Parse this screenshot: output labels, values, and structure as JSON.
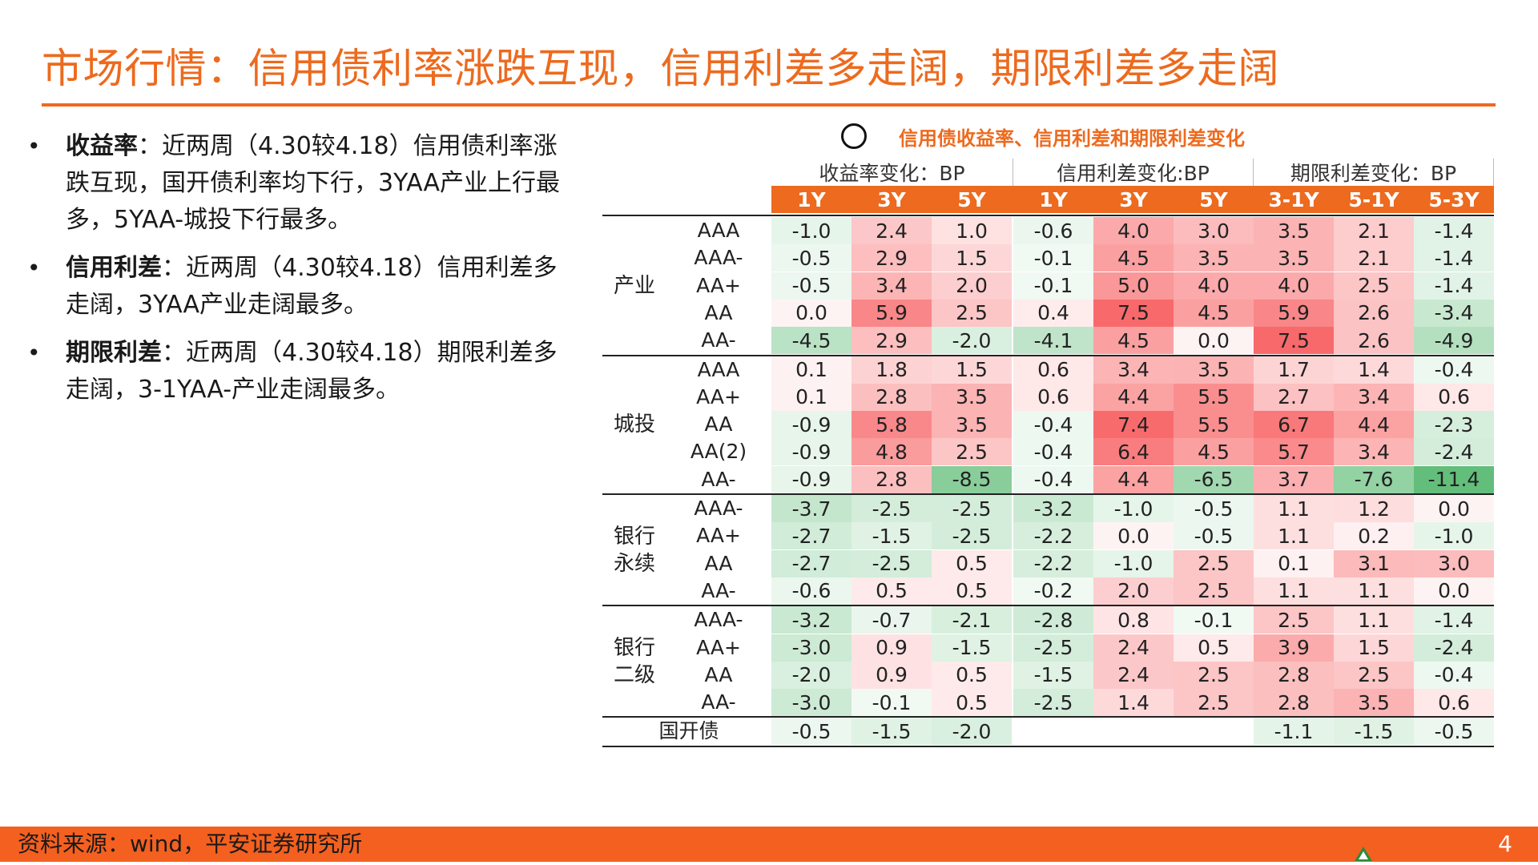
{
  "title": "市场行情：信用债利率涨跌互现，信用利差多走阔，期限利差多走阔",
  "bullets": [
    {
      "lead": "收益率",
      "text": "：近两周（4.30较4.18）信用债利率涨跌互现，国开债利率均下行，3YAA产业上行最多，5YAA-城投下行最多。"
    },
    {
      "lead": "信用利差",
      "text": "：近两周（4.30较4.18）信用利差多走阔，3YAA产业走阔最多。"
    },
    {
      "lead": "期限利差",
      "text": "：近两周（4.30较4.18）期限利差多走阔，3-1YAA-产业走阔最多。"
    }
  ],
  "table": {
    "caption": "信用债收益率、信用利差和期限利差变化",
    "caption_icon": "circle-icon",
    "groups": [
      "收益率变化：BP",
      "信用利差变化:BP",
      "期限利差变化：BP"
    ],
    "tenors": [
      "1Y",
      "3Y",
      "5Y",
      "1Y",
      "3Y",
      "5Y",
      "3-1Y",
      "5-1Y",
      "5-3Y"
    ],
    "categories": [
      {
        "label": "产业",
        "rows": [
          {
            "rating": "AAA",
            "values": [
              "-1.0",
              "2.4",
              "1.0",
              "-0.6",
              "4.0",
              "3.0",
              "3.5",
              "2.1",
              "-1.4"
            ]
          },
          {
            "rating": "AAA-",
            "values": [
              "-0.5",
              "2.9",
              "1.5",
              "-0.1",
              "4.5",
              "3.5",
              "3.5",
              "2.1",
              "-1.4"
            ]
          },
          {
            "rating": "AA+",
            "values": [
              "-0.5",
              "3.4",
              "2.0",
              "-0.1",
              "5.0",
              "4.0",
              "4.0",
              "2.5",
              "-1.4"
            ]
          },
          {
            "rating": "AA",
            "values": [
              "0.0",
              "5.9",
              "2.5",
              "0.4",
              "7.5",
              "4.5",
              "5.9",
              "2.6",
              "-3.4"
            ]
          },
          {
            "rating": "AA-",
            "values": [
              "-4.5",
              "2.9",
              "-2.0",
              "-4.1",
              "4.5",
              "0.0",
              "7.5",
              "2.6",
              "-4.9"
            ]
          }
        ]
      },
      {
        "label": "城投",
        "rows": [
          {
            "rating": "AAA",
            "values": [
              "0.1",
              "1.8",
              "1.5",
              "0.6",
              "3.4",
              "3.5",
              "1.7",
              "1.4",
              "-0.4"
            ]
          },
          {
            "rating": "AA+",
            "values": [
              "0.1",
              "2.8",
              "3.5",
              "0.6",
              "4.4",
              "5.5",
              "2.7",
              "3.4",
              "0.6"
            ]
          },
          {
            "rating": "AA",
            "values": [
              "-0.9",
              "5.8",
              "3.5",
              "-0.4",
              "7.4",
              "5.5",
              "6.7",
              "4.4",
              "-2.3"
            ]
          },
          {
            "rating": "AA(2)",
            "values": [
              "-0.9",
              "4.8",
              "2.5",
              "-0.4",
              "6.4",
              "4.5",
              "5.7",
              "3.4",
              "-2.4"
            ]
          },
          {
            "rating": "AA-",
            "values": [
              "-0.9",
              "2.8",
              "-8.5",
              "-0.4",
              "4.4",
              "-6.5",
              "3.7",
              "-7.6",
              "-11.4"
            ]
          }
        ]
      },
      {
        "label": "银行\n永续",
        "rows": [
          {
            "rating": "AAA-",
            "values": [
              "-3.7",
              "-2.5",
              "-2.5",
              "-3.2",
              "-1.0",
              "-0.5",
              "1.1",
              "1.2",
              "0.0"
            ]
          },
          {
            "rating": "AA+",
            "values": [
              "-2.7",
              "-1.5",
              "-2.5",
              "-2.2",
              "0.0",
              "-0.5",
              "1.1",
              "0.2",
              "-1.0"
            ]
          },
          {
            "rating": "AA",
            "values": [
              "-2.7",
              "-2.5",
              "0.5",
              "-2.2",
              "-1.0",
              "2.5",
              "0.1",
              "3.1",
              "3.0"
            ]
          },
          {
            "rating": "AA-",
            "values": [
              "-0.6",
              "0.5",
              "0.5",
              "-0.2",
              "2.0",
              "2.5",
              "1.1",
              "1.1",
              "0.0"
            ]
          }
        ]
      },
      {
        "label": "银行\n二级",
        "rows": [
          {
            "rating": "AAA-",
            "values": [
              "-3.2",
              "-0.7",
              "-2.1",
              "-2.8",
              "0.8",
              "-0.1",
              "2.5",
              "1.1",
              "-1.4"
            ]
          },
          {
            "rating": "AA+",
            "values": [
              "-3.0",
              "0.9",
              "-1.5",
              "-2.5",
              "2.4",
              "0.5",
              "3.9",
              "1.5",
              "-2.4"
            ]
          },
          {
            "rating": "AA",
            "values": [
              "-2.0",
              "0.9",
              "0.5",
              "-1.5",
              "2.4",
              "2.5",
              "2.8",
              "2.5",
              "-0.4"
            ]
          },
          {
            "rating": "AA-",
            "values": [
              "-3.0",
              "-0.1",
              "0.5",
              "-2.5",
              "1.4",
              "2.5",
              "2.8",
              "3.5",
              "0.6"
            ]
          }
        ]
      },
      {
        "label": "",
        "rows": [
          {
            "rating": "国开债",
            "values": [
              "-0.5",
              "-1.5",
              "-2.0",
              "",
              "",
              "",
              "-1.1",
              "-1.5",
              "-0.5"
            ]
          }
        ]
      }
    ],
    "colors": {
      "positive": "#F8696B",
      "negative": "#63BE7B",
      "neutral": "#FFFFFF",
      "header": "#ED6A1E"
    }
  },
  "footer": {
    "source": "资料来源：wind，平安证券研究所",
    "page": "4"
  }
}
